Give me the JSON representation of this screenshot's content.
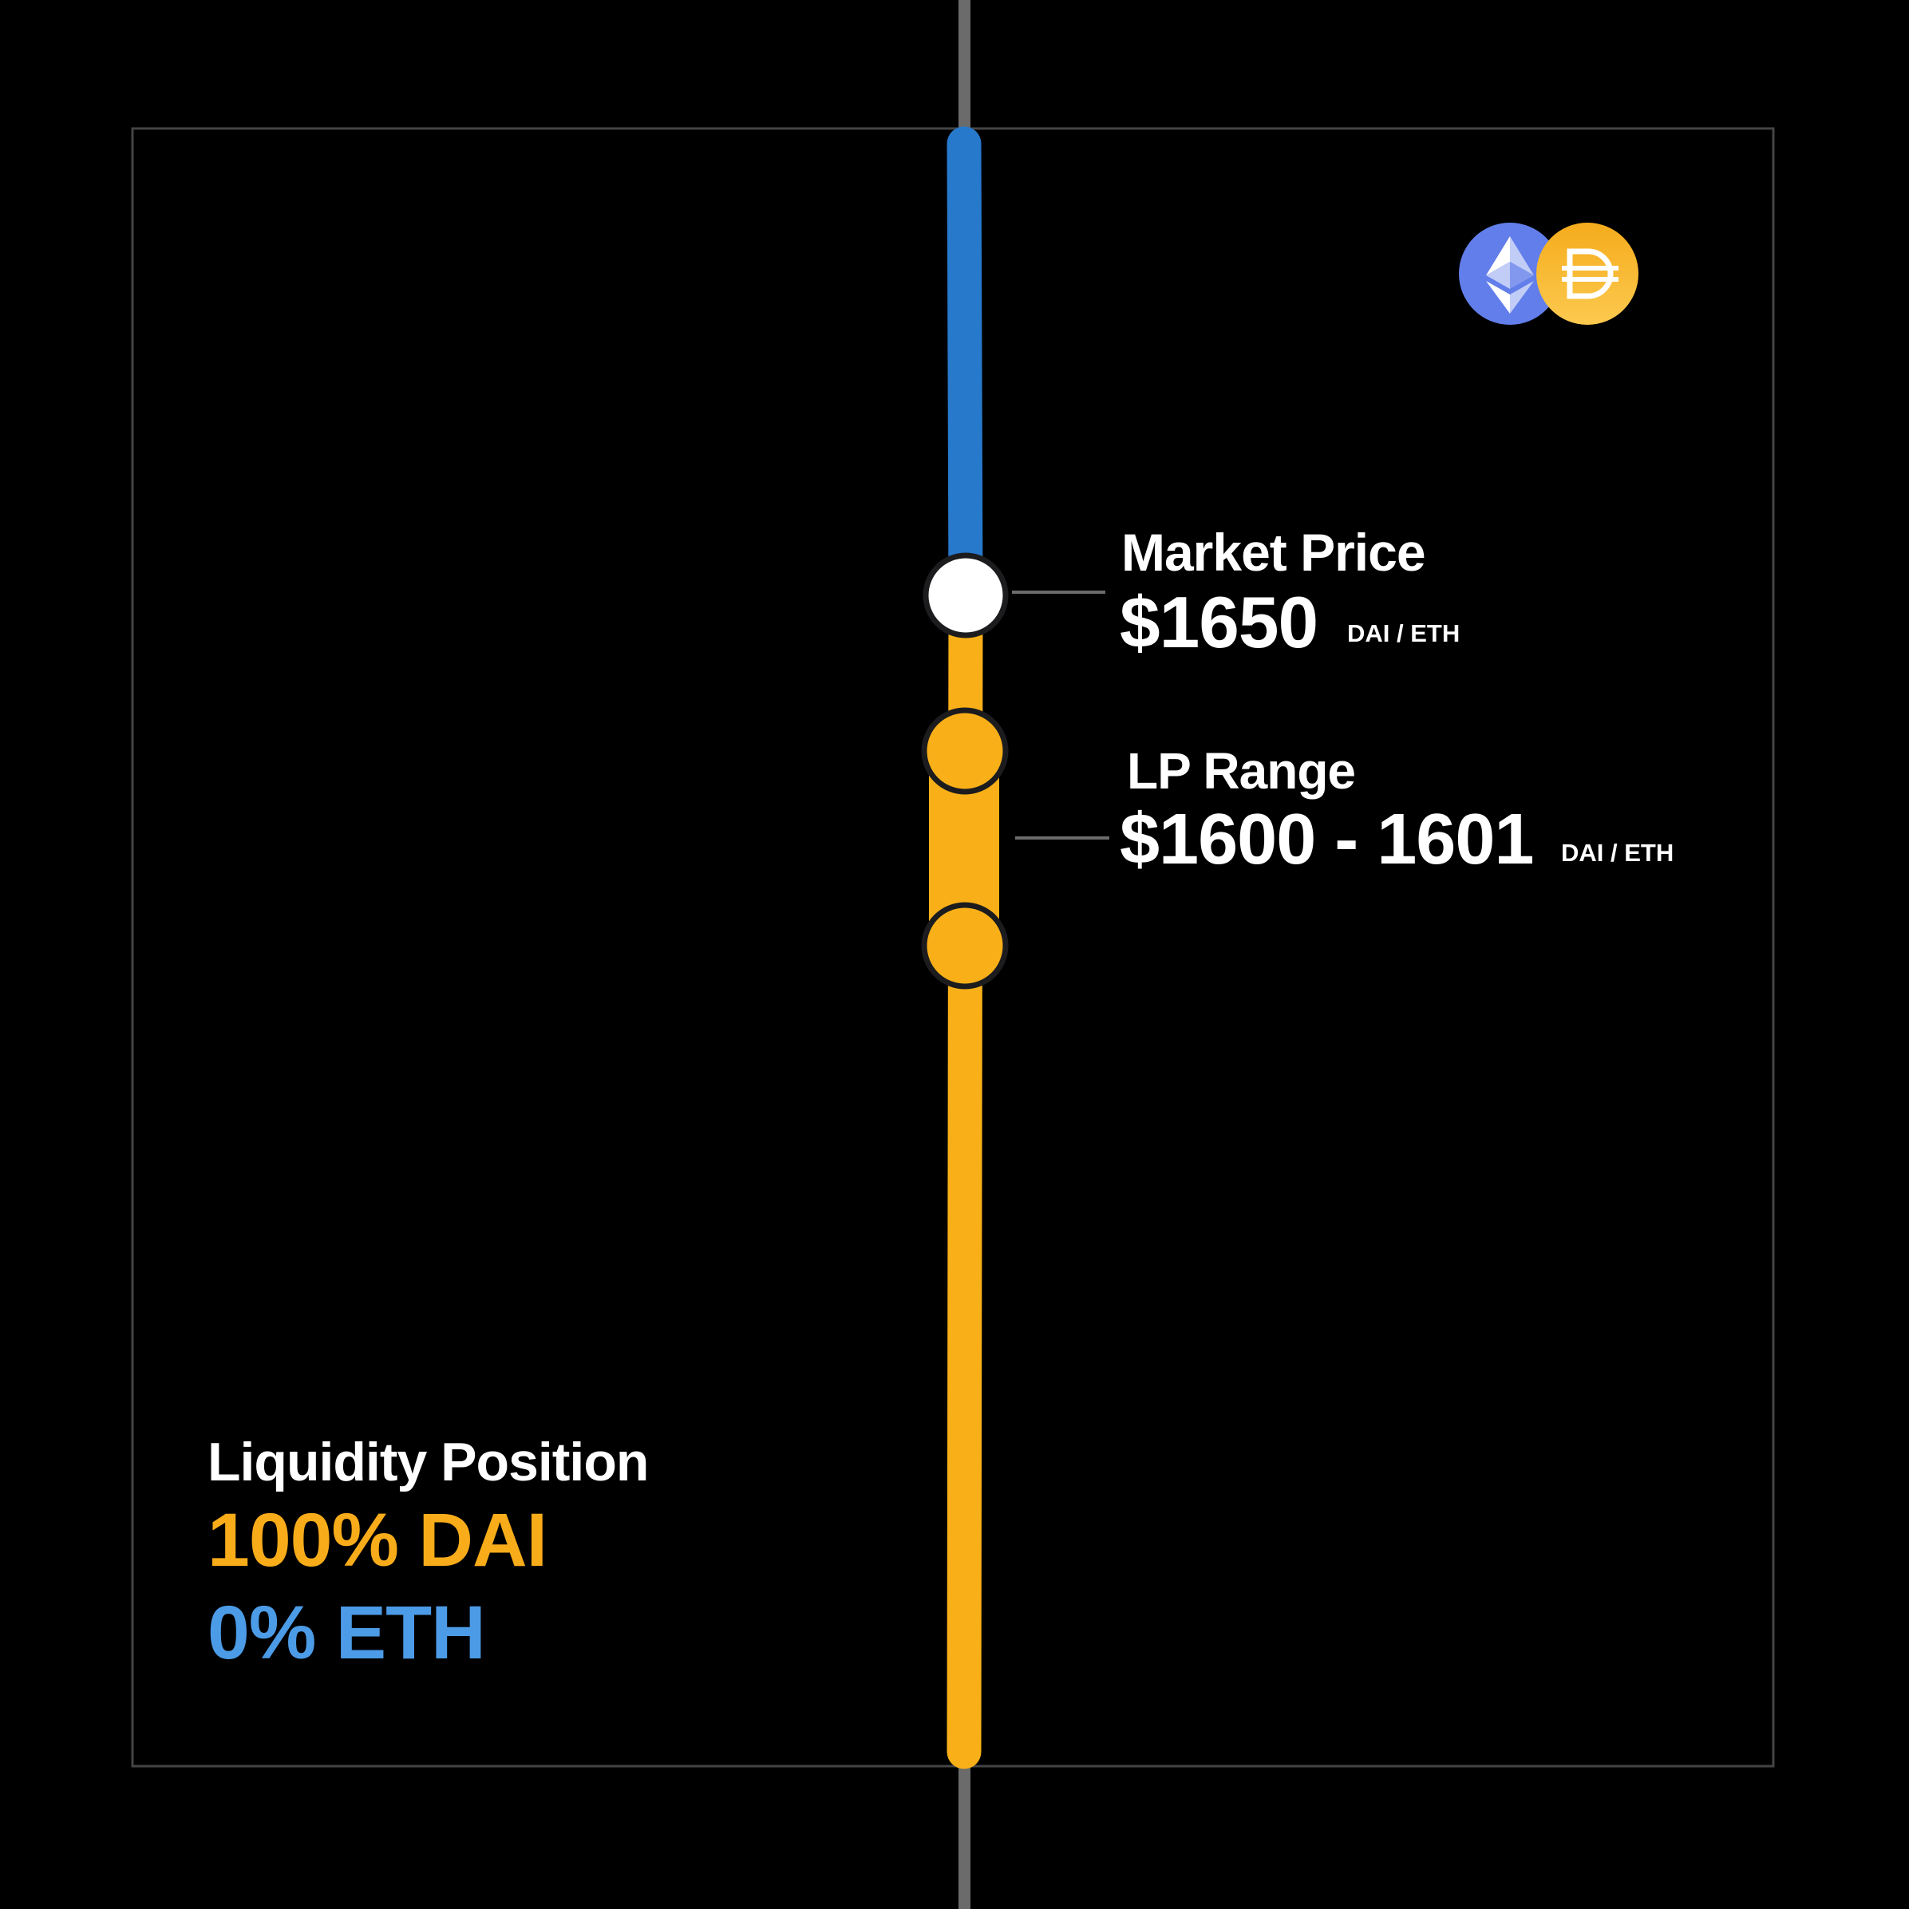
{
  "colors": {
    "background": "#000000",
    "frame": "#444444",
    "axis": "#6b6b6b",
    "eth_blue": "#2779cc",
    "dai_yellow": "#f9b018",
    "eth_text": "#4c9be6",
    "dai_text": "#f8ac1a",
    "market_dot": "#ffffff"
  },
  "tokens": {
    "eth_icon": "ethereum-logo",
    "dai_icon": "dai-logo"
  },
  "market": {
    "title": "Market Price",
    "value": "$1650",
    "unit": "DAI / ETH"
  },
  "lp_range": {
    "title": "LP Range",
    "value": "$1600 - 1601",
    "unit": "DAI / ETH"
  },
  "position": {
    "title": "Liquidity Position",
    "dai": "100% DAI",
    "eth": "0% ETH"
  }
}
